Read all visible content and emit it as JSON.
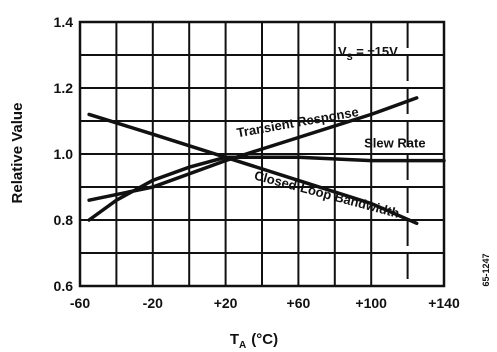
{
  "chart_data": {
    "type": "line",
    "xlabel_main": "T",
    "xlabel_sub": "A",
    "xlabel_unit": "(°C)",
    "ylabel": "Relative Value",
    "xlim": [
      -60,
      140
    ],
    "ylim": [
      0.6,
      1.4
    ],
    "x_ticks": [
      -60,
      -40,
      -20,
      0,
      20,
      40,
      60,
      80,
      100,
      120,
      140
    ],
    "x_tick_labels": [
      "-60",
      "",
      "-20",
      "",
      "+20",
      "",
      "+60",
      "",
      "+100",
      "",
      "+140"
    ],
    "y_ticks": [
      0.6,
      0.7,
      0.8,
      0.9,
      1.0,
      1.1,
      1.2,
      1.3,
      1.4
    ],
    "y_tick_labels": [
      "0.6",
      "",
      "0.8",
      "",
      "1.0",
      "",
      "1.2",
      "",
      "1.4"
    ],
    "grid": true,
    "annotation": {
      "main": "V",
      "sub": "S",
      "rest": " =   ±15V"
    },
    "side_code": "65-1247",
    "series": [
      {
        "name": "Transient Response",
        "x": [
          -55,
          -20,
          20,
          60,
          100,
          125
        ],
        "y": [
          0.86,
          0.9,
          0.98,
          1.05,
          1.12,
          1.17
        ]
      },
      {
        "name": "Slew Rate",
        "x": [
          -55,
          -40,
          -20,
          0,
          20,
          60,
          100,
          140
        ],
        "y": [
          0.8,
          0.86,
          0.92,
          0.96,
          0.99,
          0.99,
          0.98,
          0.98
        ]
      },
      {
        "name": "Closed-Loop Bandwidth",
        "x": [
          -55,
          -20,
          20,
          60,
          100,
          125
        ],
        "y": [
          1.12,
          1.06,
          0.99,
          0.92,
          0.85,
          0.79
        ]
      }
    ]
  }
}
